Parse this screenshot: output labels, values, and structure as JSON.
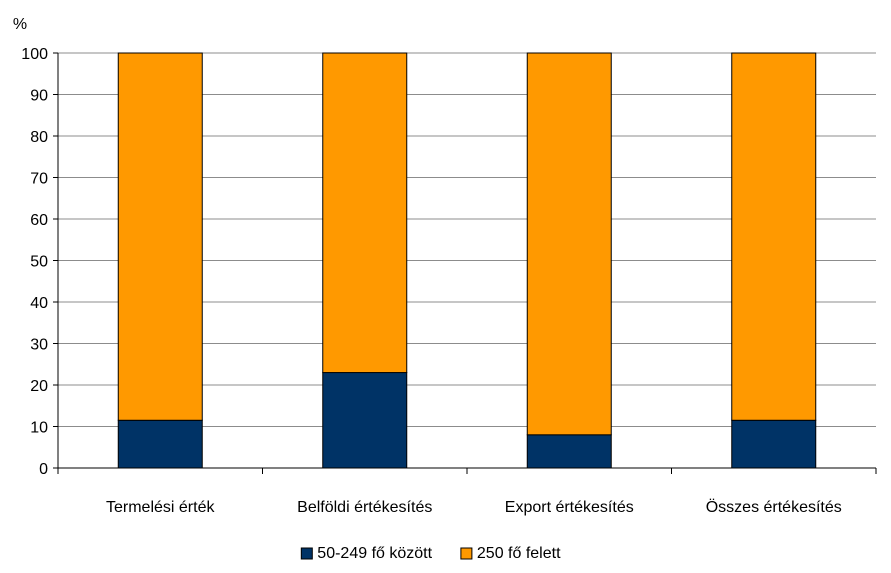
{
  "chart_data": {
    "type": "bar",
    "stacked": true,
    "y_unit_label": "%",
    "categories": [
      "Termelési érték",
      "Belföldi értékesítés",
      "Export értékesítés",
      "Összes értékesítés"
    ],
    "series": [
      {
        "name": "50-249 fő között",
        "color": "#003366",
        "values": [
          11.5,
          23,
          8,
          11.5
        ]
      },
      {
        "name": "250 fő felett",
        "color": "#ff9900",
        "values": [
          88.5,
          77,
          92,
          88.5
        ]
      }
    ],
    "ylim": [
      0,
      100
    ],
    "yticks": [
      0,
      10,
      20,
      30,
      40,
      50,
      60,
      70,
      80,
      90,
      100
    ],
    "grid": true,
    "legend_position": "bottom"
  }
}
